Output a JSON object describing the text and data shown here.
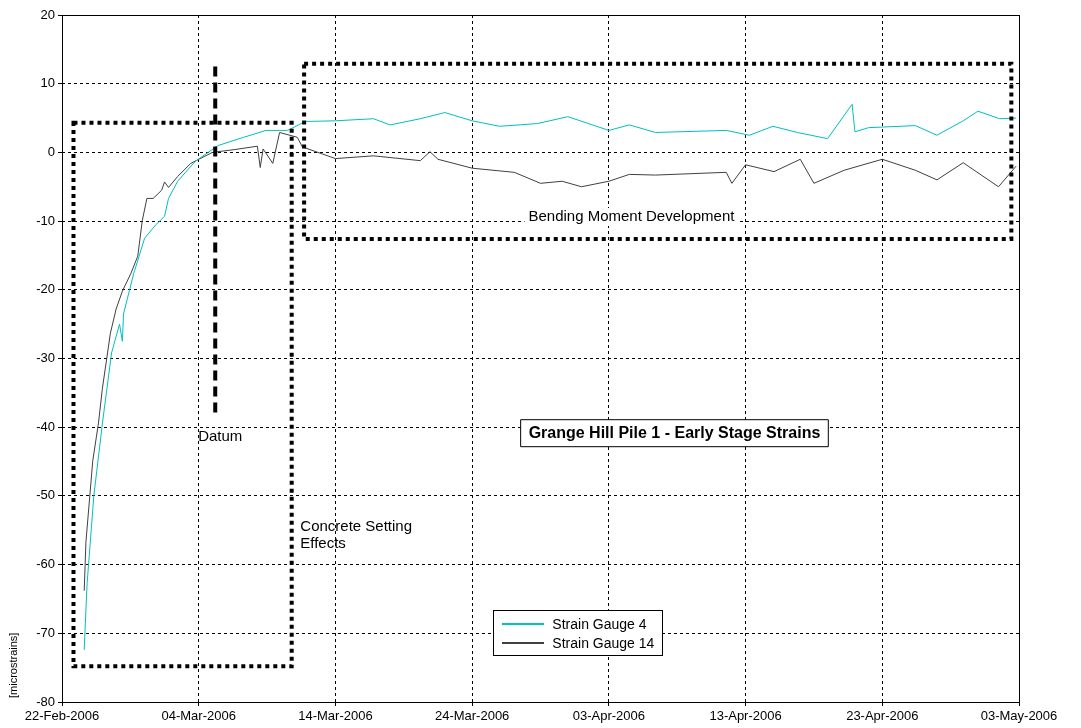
{
  "chart_data": {
    "type": "line",
    "title": "Grange Hill Pile 1 - Early Stage Strains",
    "ylabel": "[microstrains]",
    "annotations": [
      "Concrete Setting Effects",
      "Bending Moment Development"
    ],
    "ref_lines": [
      {
        "axis": "x",
        "value": "2006-03-05T05:00",
        "label": "Datum",
        "line_style": "dashed",
        "color": "#000000"
      }
    ],
    "xlim": [
      "2006-02-22",
      "2006-05-03"
    ],
    "xticks": [
      {
        "value": "2006-02-22",
        "label": "22-Feb-2006"
      },
      {
        "value": "2006-03-04",
        "label": "04-Mar-2006"
      },
      {
        "value": "2006-03-14",
        "label": "14-Mar-2006"
      },
      {
        "value": "2006-03-24",
        "label": "24-Mar-2006"
      },
      {
        "value": "2006-04-03",
        "label": "03-Apr-2006"
      },
      {
        "value": "2006-04-13",
        "label": "13-Apr-2006"
      },
      {
        "value": "2006-04-23",
        "label": "23-Apr-2006"
      },
      {
        "value": "2006-05-03",
        "label": "03-May-2006"
      }
    ],
    "ylim": [
      -80,
      20
    ],
    "yticks": [
      -80,
      -70,
      -60,
      -50,
      -40,
      -30,
      -20,
      -10,
      0,
      10,
      20
    ],
    "grid": true,
    "legend": "bottom",
    "marker": "none",
    "line_style": "solid",
    "series": [
      {
        "name": "Strain Gauge 4",
        "color": "#00c0c0",
        "x": [
          "2006-02-23T15:00",
          "2006-02-23T20:00",
          "2006-02-24T08:00",
          "2006-02-24T23:00",
          "2006-02-25T15:00",
          "2006-02-26T05:00",
          "2006-02-26T10:00",
          "2006-02-26T12:00",
          "2006-02-27T06:00",
          "2006-02-28T01:00",
          "2006-02-28T20:00",
          "2006-03-01T12:00",
          "2006-03-01T19:00",
          "2006-03-02T11:00",
          "2006-03-03T18:00",
          "2006-03-05T10:00",
          "2006-03-07T07:00",
          "2006-03-08T22:00",
          "2006-03-10T12:00",
          "2006-03-11T19:00",
          "2006-03-14T00:00",
          "2006-03-16T19:00",
          "2006-03-18T00:00",
          "2006-03-20T05:00",
          "2006-03-22T00:00",
          "2006-03-24T00:00",
          "2006-03-26T00:00",
          "2006-03-28T19:00",
          "2006-03-31T00:00",
          "2006-04-03T00:00",
          "2006-04-04T12:00",
          "2006-04-06T10:00",
          "2006-04-11T14:00",
          "2006-04-13T07:00",
          "2006-04-15T00:00",
          "2006-04-16T19:00",
          "2006-04-19T00:00",
          "2006-04-20T19:00",
          "2006-04-21T00:00",
          "2006-04-22T00:00",
          "2006-04-25T10:00",
          "2006-04-27T00:00",
          "2006-04-28T22:00",
          "2006-04-30T00:00",
          "2006-05-01T14:00",
          "2006-05-02T19:00"
        ],
        "values": [
          -72.4,
          -62.8,
          -49.9,
          -39.4,
          -29.2,
          -25,
          -27.5,
          -23.5,
          -17.6,
          -12.5,
          -10.6,
          -9.3,
          -6.7,
          -4.2,
          -1.3,
          1.0,
          2.2,
          3.2,
          3.2,
          4.5,
          4.6,
          4.9,
          4.0,
          4.9,
          5.8,
          4.6,
          3.8,
          4.2,
          5.2,
          3.2,
          4.0,
          2.9,
          3.2,
          2.5,
          3.8,
          2.9,
          2.0,
          7.0,
          3.0,
          3.6,
          3.9,
          2.5,
          4.6,
          6.0,
          4.9,
          5.0
        ]
      },
      {
        "name": "Strain Gauge 14",
        "color": "#404040",
        "x": [
          "2006-02-23T15:00",
          "2006-02-23T18:00",
          "2006-02-24T06:00",
          "2006-02-24T16:00",
          "2006-02-24T23:00",
          "2006-02-25T13:00",
          "2006-02-25T23:00",
          "2006-02-26T10:00",
          "2006-02-27T01:00",
          "2006-02-27T13:00",
          "2006-02-27T21:00",
          "2006-02-28T05:00",
          "2006-02-28T16:00",
          "2006-03-01T07:00",
          "2006-03-01T12:00",
          "2006-03-01T19:00",
          "2006-03-02T11:00",
          "2006-03-03T10:00",
          "2006-03-05T00:00",
          "2006-03-06T14:00",
          "2006-03-08T07:00",
          "2006-03-08T12:00",
          "2006-03-08T17:00",
          "2006-03-09T10:00",
          "2006-03-09T22:00",
          "2006-03-11T05:00",
          "2006-03-11T14:00",
          "2006-03-14T00:00",
          "2006-03-16T19:00",
          "2006-03-20T05:00",
          "2006-03-20T22:00",
          "2006-03-21T12:00",
          "2006-03-24T00:00",
          "2006-03-27T02:00",
          "2006-03-29T00:00",
          "2006-03-30T14:00",
          "2006-04-01T00:00",
          "2006-04-03T00:00",
          "2006-04-04T12:00",
          "2006-04-06T10:00",
          "2006-04-11T14:00",
          "2006-04-12T00:00",
          "2006-04-13T00:00",
          "2006-04-15T02:00",
          "2006-04-17T00:00",
          "2006-04-18T00:00",
          "2006-04-20T05:00",
          "2006-04-23T00:00",
          "2006-04-25T10:00",
          "2006-04-27T00:00",
          "2006-04-28T22:00",
          "2006-05-01T12:00",
          "2006-05-02T19:00"
        ],
        "values": [
          -63.8,
          -56.7,
          -44.9,
          -39.4,
          -34.3,
          -26.3,
          -22.8,
          -20.2,
          -17.6,
          -15.1,
          -9.9,
          -6.7,
          -6.7,
          -5.5,
          -4.3,
          -5.1,
          -3.5,
          -1.6,
          0,
          0.4,
          0.9,
          -2.2,
          0.5,
          -1.6,
          2.9,
          2.2,
          0.8,
          -0.9,
          -0.5,
          -1.2,
          0.1,
          -1.0,
          -2.3,
          -2.9,
          -4.5,
          -4.2,
          -5.0,
          -4.2,
          -3.2,
          -3.3,
          -2.9,
          -4.5,
          -1.8,
          -2.8,
          -1.0,
          -4.5,
          -2.6,
          -1.0,
          -2.6,
          -4.0,
          -1.5,
          -5.0,
          -2.0
        ]
      }
    ]
  }
}
